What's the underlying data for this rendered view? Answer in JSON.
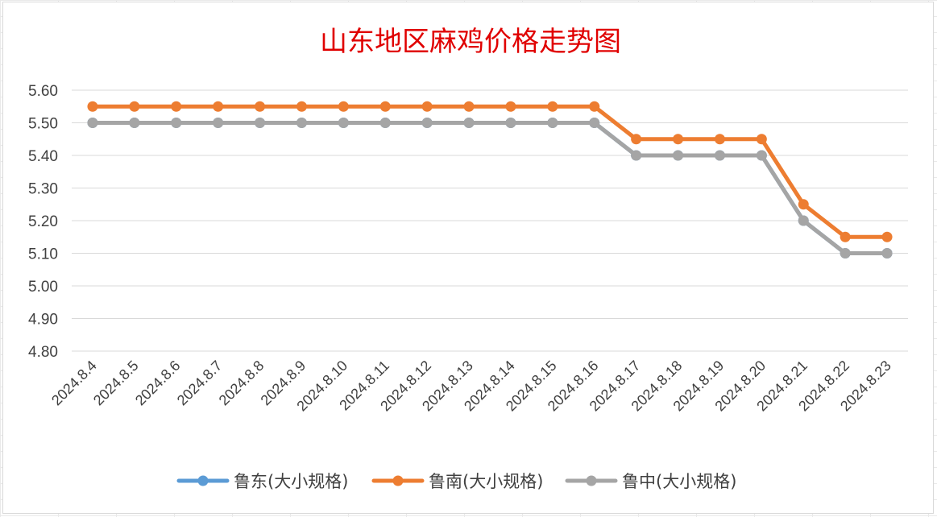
{
  "chart_data": {
    "type": "line",
    "title": "山东地区麻鸡价格走势图",
    "xlabel": "",
    "ylabel": "",
    "categories": [
      "2024.8.4",
      "2024.8.5",
      "2024.8.6",
      "2024.8.7",
      "2024.8.8",
      "2024.8.9",
      "2024.8.10",
      "2024.8.11",
      "2024.8.12",
      "2024.8.13",
      "2024.8.14",
      "2024.8.15",
      "2024.8.16",
      "2024.8.17",
      "2024.8.18",
      "2024.8.19",
      "2024.8.20",
      "2024.8.21",
      "2024.8.22",
      "2024.8.23"
    ],
    "yticks": [
      "4.80",
      "4.90",
      "5.00",
      "5.10",
      "5.20",
      "5.30",
      "5.40",
      "5.50",
      "5.60"
    ],
    "ylim": [
      4.8,
      5.6
    ],
    "grid": true,
    "legend_position": "bottom",
    "series": [
      {
        "name": "鲁东(大小规格)",
        "color": "#5B9BD5",
        "values": [
          5.5,
          5.5,
          5.5,
          5.5,
          5.5,
          5.5,
          5.5,
          5.5,
          5.5,
          5.5,
          5.5,
          5.5,
          5.5,
          5.4,
          5.4,
          5.4,
          5.4,
          5.2,
          5.1,
          5.1
        ]
      },
      {
        "name": "鲁南(大小规格)",
        "color": "#ED7D31",
        "values": [
          5.55,
          5.55,
          5.55,
          5.55,
          5.55,
          5.55,
          5.55,
          5.55,
          5.55,
          5.55,
          5.55,
          5.55,
          5.55,
          5.45,
          5.45,
          5.45,
          5.45,
          5.25,
          5.15,
          5.15
        ]
      },
      {
        "name": "鲁中(大小规格)",
        "color": "#A5A5A5",
        "values": [
          5.5,
          5.5,
          5.5,
          5.5,
          5.5,
          5.5,
          5.5,
          5.5,
          5.5,
          5.5,
          5.5,
          5.5,
          5.5,
          5.4,
          5.4,
          5.4,
          5.4,
          5.2,
          5.1,
          5.1
        ]
      }
    ],
    "title_color": "#E00000"
  }
}
